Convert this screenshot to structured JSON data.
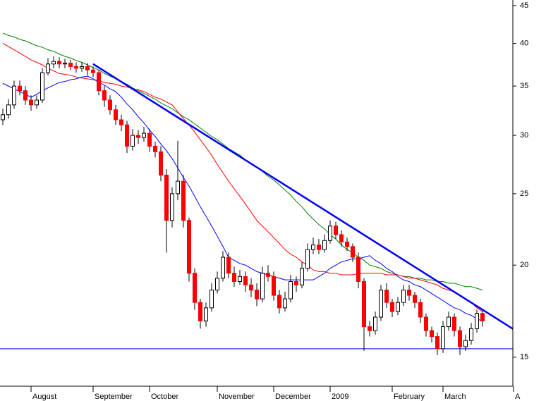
{
  "chart_data": {
    "type": "candlestick",
    "categories": [
      null,
      null,
      null,
      null,
      null,
      "August",
      null,
      null,
      null,
      null,
      null,
      null,
      null,
      null,
      null,
      null,
      "September",
      null,
      null,
      null,
      null,
      null,
      null,
      null,
      null,
      null,
      "October",
      null,
      null,
      null,
      null,
      null,
      null,
      null,
      null,
      null,
      null,
      null,
      "November",
      null,
      null,
      null,
      null,
      null,
      null,
      null,
      null,
      null,
      "December",
      null,
      null,
      null,
      null,
      null,
      null,
      null,
      null,
      null,
      "2009",
      null,
      null,
      null,
      null,
      null,
      null,
      null,
      null,
      null,
      null,
      "February",
      null,
      null,
      null,
      null,
      null,
      null,
      null,
      null,
      "March",
      null,
      null,
      null,
      null,
      null,
      null,
      null
    ],
    "end_label": "A",
    "open": [
      31.5,
      32.0,
      33.0,
      35.0,
      34.5,
      33.5,
      33.0,
      33.5,
      36.5,
      37.5,
      37.8,
      37.5,
      37.6,
      37.2,
      37.0,
      37.2,
      36.8,
      36.5,
      34.5,
      33.5,
      32.5,
      31.5,
      31.0,
      29.0,
      30.0,
      29.8,
      30.2,
      29.0,
      28.5,
      26.5,
      23.0,
      25.0,
      26.0,
      23.0,
      19.5,
      17.8,
      16.8,
      17.5,
      18.5,
      19.2,
      20.5,
      19.5,
      19.0,
      19.3,
      18.8,
      18.5,
      18.0,
      19.5,
      19.3,
      18.2,
      17.5,
      18.0,
      19.0,
      18.8,
      19.8,
      21.0,
      21.3,
      21.0,
      21.6,
      22.6,
      22.0,
      21.5,
      21.2,
      20.5,
      19.0,
      16.5,
      16.3,
      17.0,
      18.5,
      17.8,
      17.3,
      17.8,
      18.5,
      18.2,
      17.8,
      17.0,
      16.3,
      16.0,
      15.4,
      16.5,
      17.0,
      16.3,
      15.5,
      15.8,
      16.4,
      17.2
    ],
    "high": [
      32.6,
      33.6,
      35.6,
      35.6,
      35.0,
      34.0,
      34.0,
      37.0,
      38.2,
      38.4,
      38.3,
      38.1,
      38.0,
      37.7,
      37.7,
      37.6,
      37.2,
      36.8,
      35.0,
      34.0,
      33.0,
      32.0,
      31.4,
      30.6,
      30.5,
      30.8,
      30.6,
      29.4,
      29.0,
      27.0,
      25.5,
      29.5,
      26.5,
      23.2,
      19.8,
      18.0,
      17.8,
      18.9,
      19.6,
      20.9,
      20.8,
      19.9,
      19.7,
      19.6,
      19.2,
      18.9,
      19.9,
      20.0,
      19.6,
      18.5,
      18.4,
      19.4,
      19.3,
      20.2,
      21.4,
      21.8,
      21.7,
      22.0,
      23.0,
      22.9,
      22.3,
      21.8,
      21.4,
      20.8,
      19.2,
      16.8,
      17.3,
      18.8,
      18.9,
      18.0,
      18.1,
      18.8,
      18.8,
      18.4,
      18.0,
      17.2,
      16.5,
      16.2,
      16.8,
      17.3,
      17.2,
      16.5,
      16.1,
      16.7,
      17.4,
      17.4
    ],
    "low": [
      31.0,
      31.6,
      32.6,
      34.0,
      33.0,
      32.4,
      32.6,
      33.2,
      36.2,
      37.0,
      37.0,
      37.0,
      36.8,
      36.5,
      36.6,
      36.2,
      36.0,
      34.0,
      32.8,
      32.0,
      31.0,
      30.4,
      28.4,
      28.6,
      29.2,
      29.4,
      28.5,
      28.0,
      26.0,
      20.8,
      22.5,
      24.5,
      22.5,
      19.0,
      17.4,
      16.4,
      16.5,
      17.3,
      18.3,
      19.0,
      19.2,
      18.7,
      18.8,
      18.4,
      18.1,
      17.6,
      17.8,
      19.0,
      17.9,
      17.2,
      17.3,
      17.8,
      18.4,
      18.6,
      19.6,
      20.7,
      20.7,
      20.8,
      21.4,
      21.7,
      21.2,
      20.9,
      20.2,
      18.6,
      15.3,
      16.0,
      16.1,
      16.8,
      17.5,
      17.0,
      17.1,
      17.6,
      17.9,
      17.5,
      16.7,
      16.0,
      15.7,
      15.1,
      15.2,
      16.3,
      16.0,
      15.1,
      15.3,
      15.6,
      16.2,
      16.5
    ],
    "close": [
      32.0,
      33.0,
      35.0,
      34.5,
      33.5,
      33.0,
      33.5,
      36.5,
      37.5,
      37.8,
      37.5,
      37.6,
      37.2,
      37.0,
      37.2,
      36.8,
      36.5,
      34.5,
      33.5,
      32.5,
      31.5,
      31.0,
      29.0,
      30.0,
      29.8,
      30.2,
      29.0,
      28.5,
      26.5,
      23.0,
      25.0,
      26.0,
      23.0,
      19.5,
      17.8,
      16.8,
      17.5,
      18.5,
      19.2,
      20.5,
      19.5,
      19.0,
      19.3,
      18.8,
      18.5,
      18.0,
      19.5,
      19.3,
      18.2,
      17.5,
      18.0,
      19.0,
      18.8,
      19.8,
      21.0,
      21.3,
      21.0,
      21.6,
      22.6,
      22.0,
      21.5,
      21.2,
      20.5,
      19.0,
      16.5,
      16.3,
      17.0,
      18.5,
      17.8,
      17.3,
      17.8,
      18.5,
      18.2,
      17.8,
      17.0,
      16.3,
      16.0,
      15.4,
      16.5,
      17.0,
      16.3,
      15.5,
      15.8,
      16.4,
      17.2,
      16.8
    ],
    "up_color": "#ffffff",
    "down_color": "#ff0000",
    "series": [
      {
        "color": "#008000",
        "values": [
          41.3,
          41.0,
          40.8,
          40.5,
          40.3,
          40.0,
          39.7,
          39.5,
          39.2,
          39.0,
          38.7,
          38.4,
          38.2,
          37.9,
          37.7,
          37.4,
          37.1,
          36.8,
          36.4,
          36.1,
          35.8,
          35.5,
          35.2,
          34.8,
          34.5,
          34.2,
          33.9,
          33.6,
          33.2,
          32.9,
          32.6,
          32.2,
          31.8,
          31.5,
          31.1,
          30.7,
          30.3,
          29.9,
          29.6,
          29.2,
          28.8,
          28.5,
          28.2,
          27.8,
          27.5,
          27.2,
          26.8,
          26.4,
          26.1,
          25.7,
          25.3,
          24.9,
          24.4,
          24.0,
          23.5,
          23.1,
          22.7,
          22.4,
          22.0,
          21.7,
          21.3,
          21.0,
          20.8,
          20.5,
          20.3,
          20.0,
          19.9,
          19.8,
          19.6,
          19.5,
          19.4,
          19.3,
          19.3,
          19.2,
          19.2,
          19.1,
          19.1,
          19.0,
          19.0,
          18.9,
          18.9,
          18.8,
          18.7,
          18.7,
          18.6,
          18.5
        ]
      },
      {
        "color": "#ff0000",
        "values": [
          40.0,
          39.6,
          39.2,
          38.8,
          38.4,
          38.0,
          37.7,
          37.4,
          37.0,
          36.7,
          36.4,
          36.3,
          36.2,
          36.0,
          35.9,
          35.8,
          35.7,
          35.6,
          35.4,
          35.3,
          35.2,
          35.0,
          34.9,
          34.7,
          34.6,
          34.4,
          34.1,
          33.8,
          33.6,
          33.3,
          33.0,
          32.3,
          31.6,
          31.0,
          30.3,
          29.6,
          28.9,
          28.2,
          27.4,
          26.7,
          26.0,
          25.4,
          24.8,
          24.2,
          23.6,
          23.0,
          22.6,
          22.2,
          21.8,
          21.4,
          21.0,
          20.7,
          20.5,
          20.2,
          20.0,
          19.7,
          19.6,
          19.6,
          19.5,
          19.5,
          19.4,
          19.4,
          19.4,
          19.5,
          19.5,
          19.5,
          19.5,
          19.5,
          19.4,
          19.4,
          19.4,
          19.3,
          19.2,
          19.2,
          19.1,
          19.0,
          18.9,
          18.8,
          18.6,
          18.5,
          18.4,
          18.2,
          18.0,
          17.8,
          17.5,
          17.3
        ]
      },
      {
        "color": "#0000ff",
        "values": [
          35.3,
          35.0,
          34.7,
          34.4,
          34.1,
          33.8,
          34.1,
          34.5,
          34.8,
          35.1,
          35.4,
          35.5,
          35.7,
          35.8,
          36.0,
          36.1,
          35.8,
          35.4,
          35.1,
          34.7,
          34.4,
          33.8,
          33.1,
          32.5,
          31.8,
          31.2,
          30.5,
          29.9,
          29.2,
          28.6,
          27.9,
          27.1,
          26.3,
          25.6,
          24.8,
          24.0,
          23.3,
          22.6,
          21.9,
          21.2,
          20.5,
          20.3,
          20.1,
          20.0,
          19.8,
          19.6,
          19.5,
          19.4,
          19.3,
          19.2,
          19.1,
          19.1,
          19.1,
          19.1,
          19.1,
          19.1,
          19.3,
          19.5,
          19.8,
          20.0,
          20.2,
          20.3,
          20.4,
          20.4,
          20.5,
          20.6,
          20.3,
          20.1,
          19.8,
          19.6,
          19.3,
          19.1,
          19.0,
          18.8,
          18.7,
          18.5,
          18.3,
          18.1,
          17.9,
          17.7,
          17.5,
          17.4,
          17.2,
          17.1,
          16.9,
          16.8
        ]
      }
    ],
    "trendline": {
      "x": [
        16,
        85
      ],
      "values": [
        37.5,
        17.4
      ],
      "color": "#0000ff"
    },
    "support": {
      "value": 15.4,
      "color": "#0000ff"
    },
    "log_scale": true,
    "ylim": [
      13.7,
      45.8
    ],
    "yticks": [
      15,
      20,
      25,
      30,
      35,
      40,
      45
    ]
  }
}
